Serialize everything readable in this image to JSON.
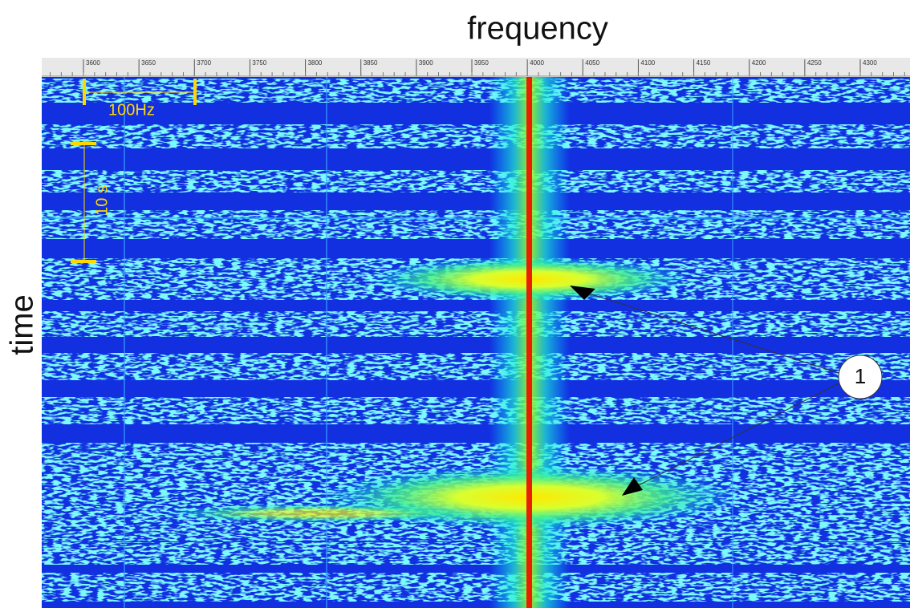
{
  "title": "frequency",
  "axis_label": "time",
  "ruler": {
    "ticks": [
      3600,
      3650,
      3700,
      3750,
      3800,
      3850,
      3900,
      3950,
      4000,
      4050,
      4100,
      4150,
      4200,
      4250,
      4300
    ]
  },
  "scale_bars": {
    "frequency": "100Hz",
    "time": "10 s"
  },
  "callout": "1"
}
